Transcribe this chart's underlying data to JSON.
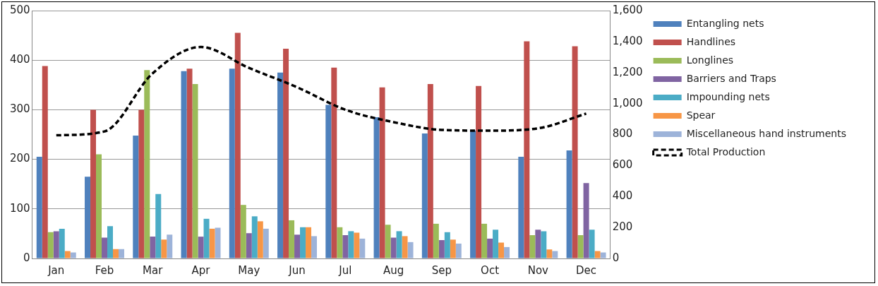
{
  "chart_data": {
    "type": "bar",
    "categories": [
      "Jan",
      "Feb",
      "Mar",
      "Apr",
      "May",
      "Jun",
      "Jul",
      "Aug",
      "Sep",
      "Oct",
      "Nov",
      "Dec"
    ],
    "series": [
      {
        "name": "Entangling nets",
        "color": "#4f81bd",
        "values": [
          205,
          165,
          248,
          378,
          383,
          375,
          310,
          285,
          252,
          258,
          205,
          218
        ]
      },
      {
        "name": "Handlines",
        "color": "#c0504d",
        "values": [
          388,
          300,
          300,
          383,
          455,
          423,
          385,
          345,
          352,
          348,
          438,
          428
        ]
      },
      {
        "name": "Longlines",
        "color": "#9bbb59",
        "values": [
          53,
          210,
          380,
          352,
          108,
          77,
          63,
          68,
          70,
          70,
          47,
          47
        ]
      },
      {
        "name": "Barriers and Traps",
        "color": "#8064a2",
        "values": [
          55,
          42,
          44,
          44,
          51,
          48,
          47,
          42,
          37,
          40,
          58,
          152
        ]
      },
      {
        "name": "Impounding nets",
        "color": "#4bacc6",
        "values": [
          60,
          65,
          130,
          80,
          85,
          63,
          55,
          55,
          53,
          58,
          55,
          58
        ]
      },
      {
        "name": "Spear",
        "color": "#f79646",
        "values": [
          15,
          19,
          38,
          60,
          75,
          63,
          52,
          45,
          38,
          32,
          18,
          15
        ]
      },
      {
        "name": "Miscellaneous hand instruments",
        "color": "#9db3d9",
        "values": [
          12,
          19,
          48,
          62,
          60,
          45,
          40,
          33,
          30,
          23,
          15,
          12
        ]
      },
      {
        "name": "Total Production",
        "type": "line",
        "axis": "y2",
        "color": "#000000",
        "line_style": "dashed",
        "values": [
          795,
          820,
          1195,
          1365,
          1230,
          1105,
          960,
          880,
          830,
          825,
          840,
          935
        ]
      }
    ],
    "ylim": [
      0,
      500
    ],
    "yticks": [
      0,
      100,
      200,
      300,
      400,
      500
    ],
    "y2lim": [
      0,
      1600
    ],
    "y2ticks": [
      0,
      200,
      400,
      600,
      800,
      {
        "value": 1000,
        "label": "1,000"
      },
      {
        "value": 1200,
        "label": "1,200"
      },
      {
        "value": 1400,
        "label": "1,400"
      },
      {
        "value": 1600,
        "label": "1,600"
      }
    ],
    "grid": "y",
    "legend": "right"
  }
}
